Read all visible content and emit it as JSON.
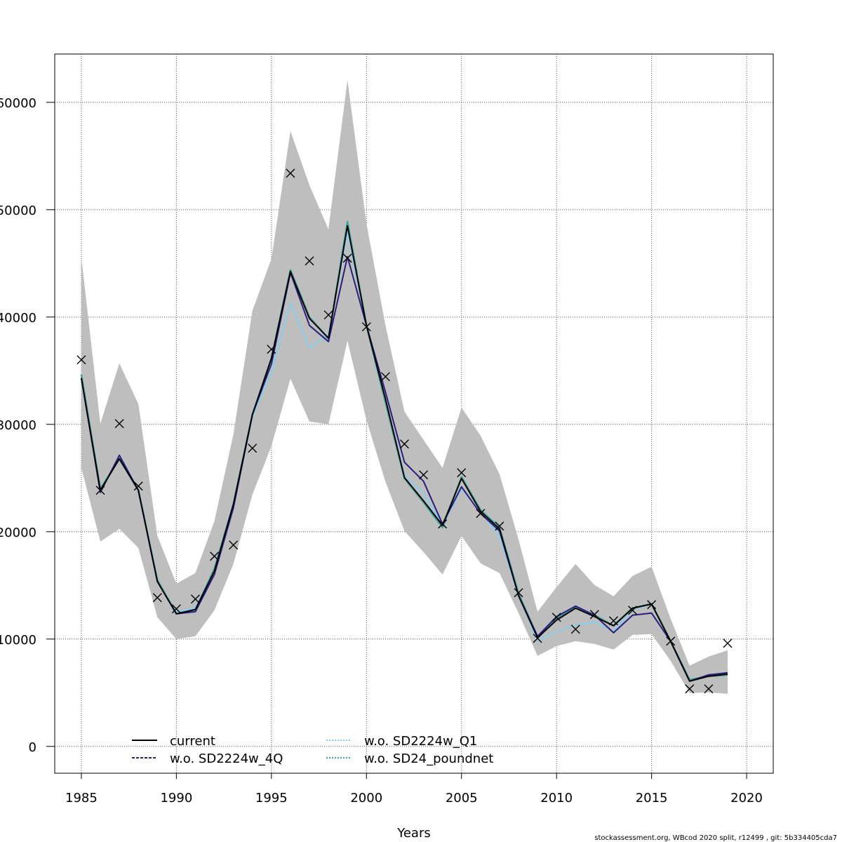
{
  "chart_data": {
    "type": "line",
    "title": "",
    "xlabel": "Years",
    "ylabel": "",
    "xlim": [
      1983.6,
      2021.4
    ],
    "ylim": [
      -2500,
      64500
    ],
    "grid": true,
    "x_ticks": [
      1985,
      1990,
      1995,
      2000,
      2005,
      2010,
      2015,
      2020
    ],
    "x_tick_labels": [
      "1985",
      "1990",
      "1995",
      "2000",
      "2005",
      "2010",
      "2015",
      "2020"
    ],
    "y_ticks": [
      0,
      10000,
      20000,
      30000,
      40000,
      50000,
      60000
    ],
    "y_tick_labels": [
      "0",
      "10000",
      "20000",
      "30000",
      "40000",
      "50000",
      "60000"
    ],
    "x": [
      1985,
      1986,
      1987,
      1988,
      1989,
      1990,
      1991,
      1992,
      1993,
      1994,
      1995,
      1996,
      1997,
      1998,
      1999,
      2000,
      2001,
      2002,
      2003,
      2004,
      2005,
      2006,
      2007,
      2008,
      2009,
      2010,
      2011,
      2012,
      2013,
      2014,
      2015,
      2016,
      2017,
      2018,
      2019
    ],
    "confidence_band": {
      "name": "current 95% CI",
      "color": "#bebebe",
      "upper": [
        45556,
        30065,
        35686,
        31895,
        19608,
        15163,
        16144,
        20980,
        29085,
        40588,
        45425,
        57320,
        52288,
        48170,
        62092,
        48693,
        39216,
        31176,
        28562,
        25948,
        31569,
        28954,
        25359,
        19281,
        12549,
        14837,
        16993,
        15033,
        13987,
        15882,
        16732,
        11895,
        7516,
        8366,
        8954
      ],
      "lower": [
        25948,
        19085,
        20261,
        18497,
        12026,
        10000,
        10261,
        12680,
        16993,
        23464,
        27974,
        34248,
        30261,
        30000,
        37778,
        30392,
        24641,
        20065,
        18105,
        16013,
        19608,
        17059,
        16144,
        12418,
        8431,
        9346,
        9804,
        9542,
        9020,
        10392,
        10458,
        7974,
        4967,
        5033,
        4902
      ]
    },
    "series": [
      {
        "name": "current",
        "color": "#000000",
        "dash": "solid",
        "values": [
          34314,
          23856,
          26797,
          23856,
          15359,
          12353,
          12745,
          16340,
          22549,
          30915,
          36144,
          44248,
          39869,
          38039,
          48497,
          39216,
          32353,
          25033,
          22876,
          20588,
          24967,
          21895,
          20261,
          14052,
          10131,
          11765,
          12876,
          12092,
          11242,
          12876,
          13268,
          9804,
          6078,
          6536,
          6732
        ]
      },
      {
        "name": "w.o. SD2224w_4Q",
        "color": "#2c1d7f",
        "dash": "dashed",
        "values": [
          34314,
          23660,
          27124,
          23856,
          15359,
          12353,
          12549,
          16013,
          22222,
          30915,
          35621,
          44118,
          39216,
          37712,
          45621,
          39216,
          33007,
          26471,
          24706,
          20719,
          24183,
          21699,
          20065,
          14052,
          10261,
          12092,
          13072,
          12222,
          10588,
          12222,
          12418,
          9804,
          6078,
          6667,
          6863
        ]
      },
      {
        "name": "w.o. SD2224w_Q1",
        "color": "#87ceeb",
        "dash": "dotted",
        "values": [
          34314,
          23856,
          26797,
          23856,
          15359,
          12549,
          12876,
          16340,
          22549,
          30719,
          34837,
          41307,
          37124,
          38366,
          47843,
          39216,
          32353,
          25294,
          23529,
          20588,
          23987,
          21895,
          19608,
          14052,
          9804,
          10719,
          11307,
          11569,
          10719,
          12745,
          13268,
          9804,
          6078,
          6536,
          6732
        ]
      },
      {
        "name": "w.o. SD24_poundnet",
        "color": "#3aa59a",
        "dash": "dotted",
        "values": [
          34641,
          23987,
          26797,
          23856,
          15490,
          12353,
          12745,
          16536,
          22549,
          30915,
          36144,
          44379,
          40000,
          37974,
          48889,
          39216,
          32026,
          24967,
          22745,
          20392,
          25098,
          22026,
          20392,
          14248,
          10196,
          11895,
          13007,
          12222,
          11242,
          12876,
          13268,
          9804,
          6209,
          6536,
          6667
        ]
      }
    ],
    "observations": {
      "name": "observed",
      "marker": "x",
      "color": "#000000",
      "values": [
        36013,
        23856,
        30065,
        24248,
        13856,
        12810,
        13725,
        17712,
        18758,
        27778,
        36993,
        53399,
        45229,
        40196,
        45490,
        39085,
        34444,
        28170,
        25294,
        20719,
        25490,
        21699,
        20523,
        14314,
        10065,
        12026,
        10915,
        12288,
        11699,
        12680,
        13203,
        9804,
        5359,
        5359,
        9608
      ]
    },
    "legend": {
      "placement": "bottom-left",
      "entries": [
        "current",
        "w.o. SD2224w_Q1",
        "w.o. SD2224w_4Q",
        "w.o. SD24_poundnet"
      ]
    },
    "footer": "stockassessment.org, WBcod 2020 split, r12499 , git: 5b334405cda7"
  }
}
